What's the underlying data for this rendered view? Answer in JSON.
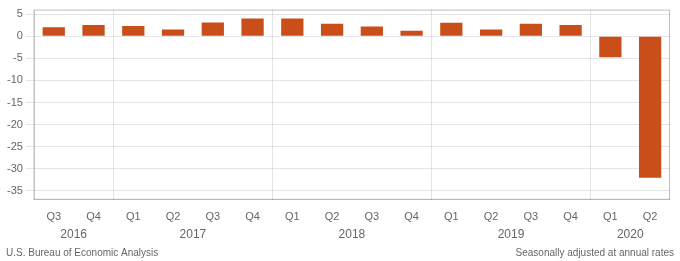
{
  "chart_data": {
    "type": "bar",
    "categories": [
      "Q3",
      "Q4",
      "Q1",
      "Q2",
      "Q3",
      "Q4",
      "Q1",
      "Q2",
      "Q3",
      "Q4",
      "Q1",
      "Q2",
      "Q3",
      "Q4",
      "Q1",
      "Q2"
    ],
    "values": [
      2.0,
      2.5,
      2.3,
      1.5,
      3.1,
      4.0,
      4.0,
      2.8,
      2.2,
      1.2,
      3.0,
      1.5,
      2.8,
      2.5,
      -4.8,
      -32.0
    ],
    "color": "#C94E1A",
    "ylim": [
      -37,
      6
    ],
    "yticks": [
      5,
      0,
      -5,
      -10,
      -15,
      -20,
      -25,
      -30,
      -35
    ],
    "grid": true,
    "year_groups": [
      {
        "label": "2016",
        "first": 0,
        "last": 1
      },
      {
        "label": "2017",
        "first": 2,
        "last": 5
      },
      {
        "label": "2018",
        "first": 6,
        "last": 9
      },
      {
        "label": "2019",
        "first": 10,
        "last": 13
      },
      {
        "label": "2020",
        "first": 14,
        "last": 15
      }
    ],
    "footnotes": [
      "U.S. Bureau of Economic Analysis",
      "Seasonally adjusted at annual rates"
    ]
  }
}
